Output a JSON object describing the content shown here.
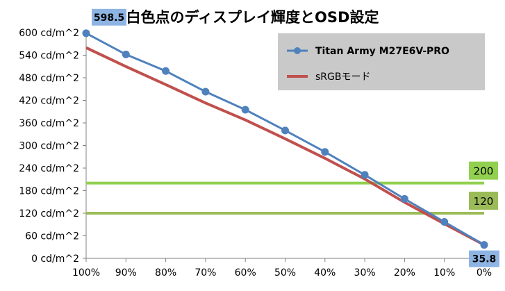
{
  "chart_data": {
    "type": "line",
    "title": "白色点のディスプレイ輝度とOSD設定",
    "x": [
      "100%",
      "90%",
      "80%",
      "70%",
      "60%",
      "50%",
      "40%",
      "30%",
      "20%",
      "10%",
      "0%"
    ],
    "x_positions": [
      100,
      90,
      80,
      70,
      60,
      50,
      40,
      30,
      20,
      10,
      0
    ],
    "ylim": [
      0,
      600
    ],
    "yticks": [
      0,
      60,
      120,
      180,
      240,
      300,
      360,
      420,
      480,
      540,
      600
    ],
    "ytick_labels": [
      "0 cd/m^2",
      "60 cd/m^2",
      "120 cd/m^2",
      "180 cd/m^2",
      "240 cd/m^2",
      "300 cd/m^2",
      "360 cd/m^2",
      "420 cd/m^2",
      "480 cd/m^2",
      "540 cd/m^2",
      "600 cd/m^2"
    ],
    "series": [
      {
        "name": "Titan Army M27E6V-PRO",
        "color": "#4f81bd",
        "marker": "circle",
        "values": [
          598.5,
          542,
          498,
          443,
          395,
          340,
          283,
          222,
          158,
          97,
          35.8
        ]
      },
      {
        "name": "sRGBモード",
        "color": "#c0504d",
        "marker": "none",
        "values": [
          560,
          510,
          462,
          413,
          368,
          318,
          266,
          211,
          149,
          92,
          35.8
        ]
      }
    ],
    "reference_lines": [
      {
        "label": "200",
        "value": 200,
        "color": "#92d050"
      },
      {
        "label": "120",
        "value": 120,
        "color": "#9bbb59"
      }
    ],
    "annotations": [
      {
        "label": "598.5",
        "series": 0,
        "point": 0
      },
      {
        "label": "35.8",
        "series": 0,
        "point": 10
      }
    ],
    "legend_position": "top-right",
    "grid": false
  }
}
